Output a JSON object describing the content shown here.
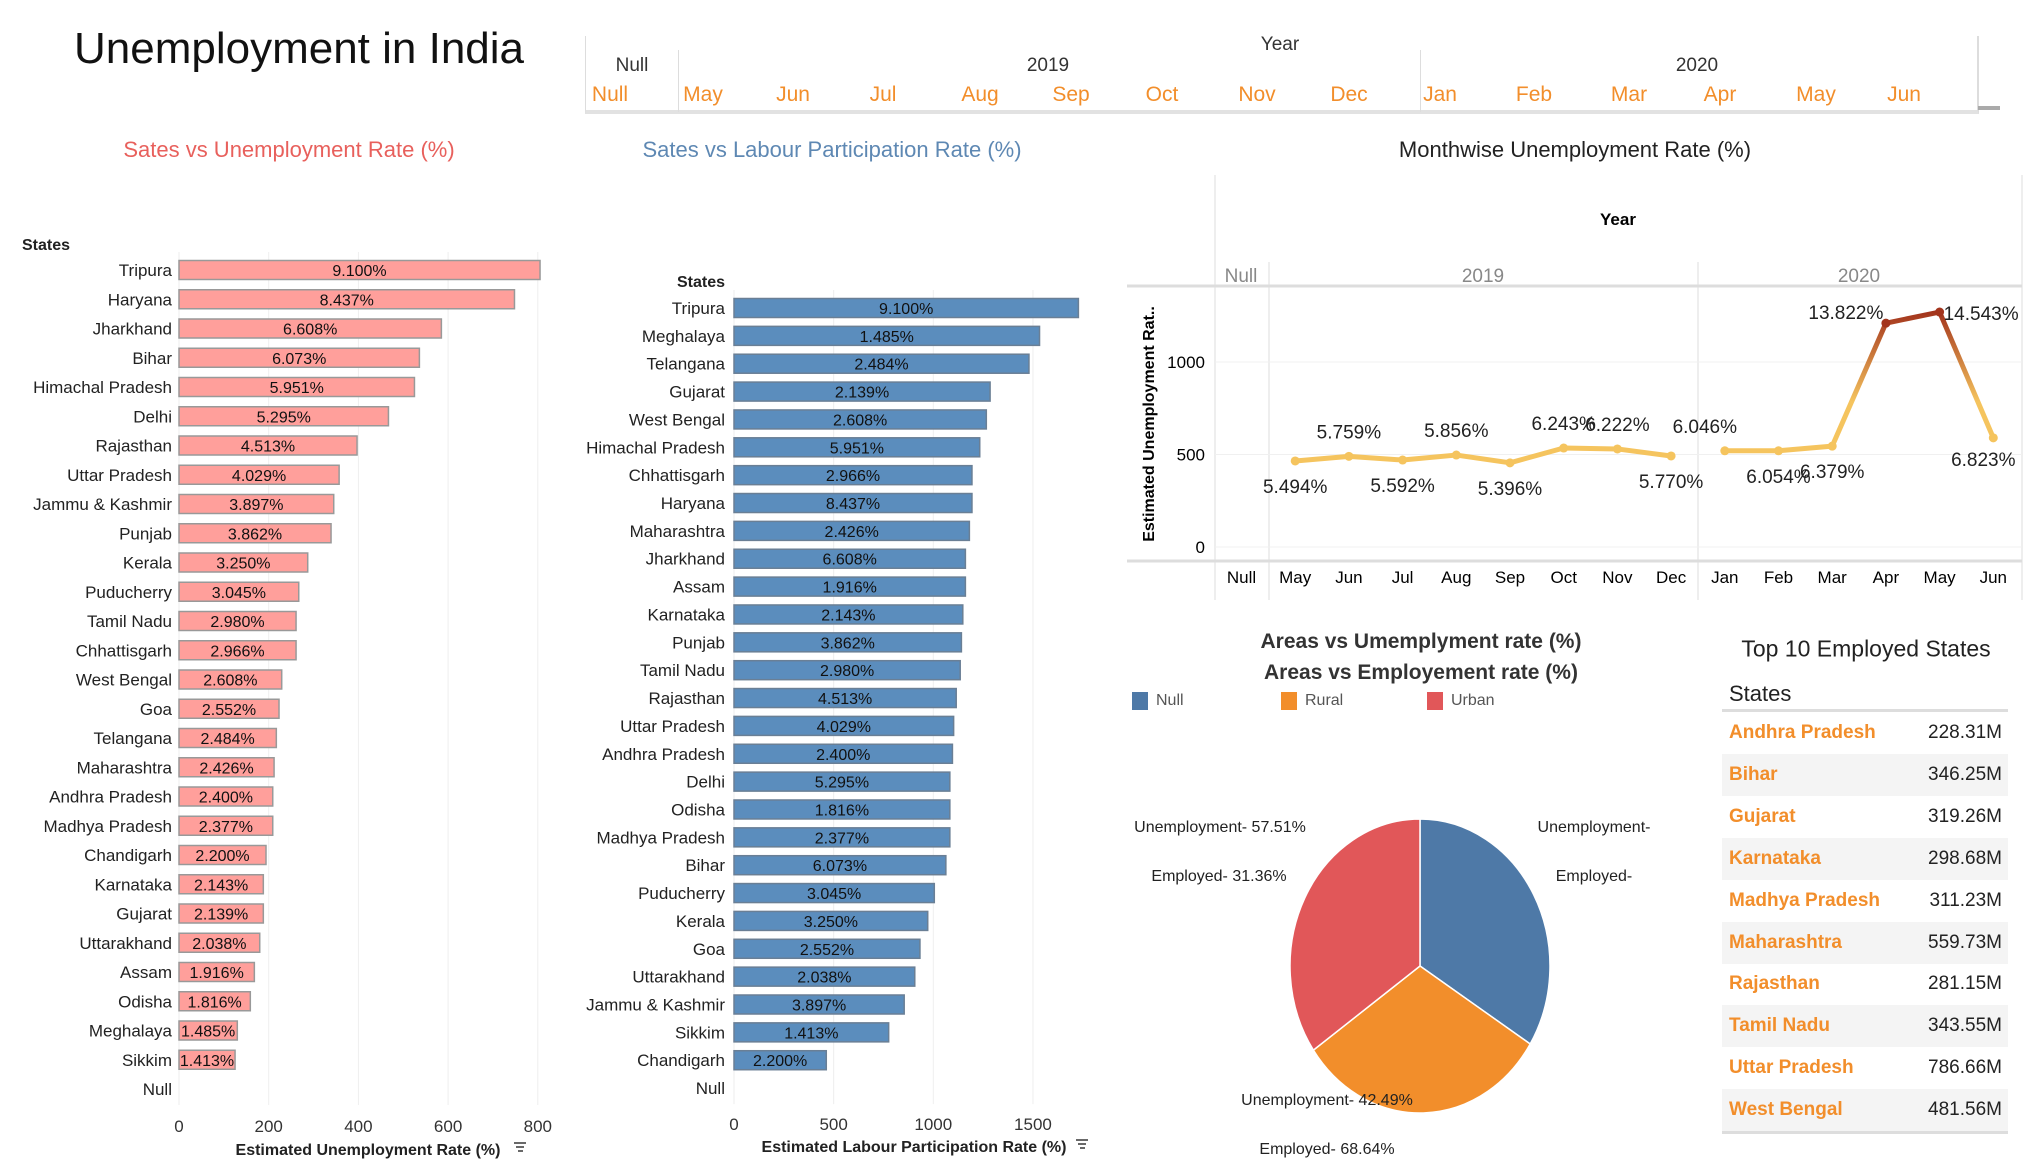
{
  "header": {
    "title": "Unemployment in India"
  },
  "filter": {
    "label": "Year",
    "groups": [
      {
        "label": "Null"
      },
      {
        "label": "2019"
      },
      {
        "label": "2020"
      }
    ],
    "months": [
      "Null",
      "May",
      "Jun",
      "Jul",
      "Aug",
      "Sep",
      "Oct",
      "Nov",
      "Dec",
      "Jan",
      "Feb",
      "Mar",
      "Apr",
      "May",
      "Jun"
    ]
  },
  "colors": {
    "unemp_bar": "#ff9f9b",
    "labour_bar": "#5b8dbd",
    "unemp_title": "#e8605c",
    "labour_title": "#5e88b3",
    "accent": "#f28e2b",
    "null": "#4e79a7",
    "rural": "#f28e2b",
    "urban": "#e15759",
    "line_low": "#f5c45e",
    "line_high": "#a3341c"
  },
  "chart_data": [
    {
      "type": "bar",
      "title": "Sates vs Unemployment Rate (%)",
      "ylabel": "States",
      "xlabel": "Estimated Unemployment Rate (%)",
      "xlim": [
        0,
        800
      ],
      "xticks": [
        "0",
        "200",
        "400",
        "600",
        "800"
      ],
      "grid": true,
      "categories": [
        "Tripura",
        "Haryana",
        "Jharkhand",
        "Bihar",
        "Himachal Pradesh",
        "Delhi",
        "Rajasthan",
        "Uttar Pradesh",
        "Jammu & Kashmir",
        "Punjab",
        "Kerala",
        "Puducherry",
        "Tamil Nadu",
        "Chhattisgarh",
        "West Bengal",
        "Goa",
        "Telangana",
        "Maharashtra",
        "Andhra Pradesh",
        "Madhya Pradesh",
        "Chandigarh",
        "Karnataka",
        "Gujarat",
        "Uttarakhand",
        "Assam",
        "Odisha",
        "Meghalaya",
        "Sikkim",
        "Null"
      ],
      "values": [
        805,
        748,
        585,
        536,
        525,
        467,
        397,
        357,
        345,
        339,
        287,
        267,
        261,
        261,
        229,
        223,
        217,
        212,
        209,
        209,
        194,
        188,
        188,
        180,
        168,
        159,
        130,
        125,
        0
      ],
      "labels": [
        "9.100%",
        "8.437%",
        "6.608%",
        "6.073%",
        "5.951%",
        "5.295%",
        "4.513%",
        "4.029%",
        "3.897%",
        "3.862%",
        "3.250%",
        "3.045%",
        "2.980%",
        "2.966%",
        "2.608%",
        "2.552%",
        "2.484%",
        "2.426%",
        "2.400%",
        "2.377%",
        "2.200%",
        "2.143%",
        "2.139%",
        "2.038%",
        "1.916%",
        "1.816%",
        "1.485%",
        "1.413%",
        ""
      ]
    },
    {
      "type": "bar",
      "title": "Sates vs Labour Participation Rate (%)",
      "ylabel": "States",
      "xlabel": "Estimated Labour Participation Rate (%)",
      "xlim": [
        0,
        1750
      ],
      "xticks": [
        "0",
        "500",
        "1000",
        "1500"
      ],
      "grid": true,
      "categories": [
        "Tripura",
        "Meghalaya",
        "Telangana",
        "Gujarat",
        "West Bengal",
        "Himachal Pradesh",
        "Chhattisgarh",
        "Haryana",
        "Maharashtra",
        "Jharkhand",
        "Assam",
        "Karnataka",
        "Punjab",
        "Tamil Nadu",
        "Rajasthan",
        "Uttar Pradesh",
        "Andhra Pradesh",
        "Delhi",
        "Odisha",
        "Madhya Pradesh",
        "Bihar",
        "Puducherry",
        "Kerala",
        "Goa",
        "Uttarakhand",
        "Jammu & Kashmir",
        "Sikkim",
        "Chandigarh",
        "Null"
      ],
      "values": [
        1728,
        1533,
        1480,
        1285,
        1266,
        1233,
        1194,
        1194,
        1181,
        1161,
        1161,
        1148,
        1141,
        1135,
        1115,
        1102,
        1096,
        1083,
        1083,
        1083,
        1063,
        1005,
        972,
        933,
        907,
        854,
        776,
        463,
        0
      ],
      "labels": [
        "9.100%",
        "1.485%",
        "2.484%",
        "2.139%",
        "2.608%",
        "5.951%",
        "2.966%",
        "8.437%",
        "2.426%",
        "6.608%",
        "1.916%",
        "2.143%",
        "3.862%",
        "2.980%",
        "4.513%",
        "4.029%",
        "2.400%",
        "5.295%",
        "1.816%",
        "2.377%",
        "6.073%",
        "3.045%",
        "3.250%",
        "2.552%",
        "2.038%",
        "3.897%",
        "1.413%",
        "2.200%",
        ""
      ]
    },
    {
      "type": "line",
      "title": "Monthwise Unemployment Rate (%)",
      "header": "Year",
      "ylabel": "Estimated Unemployment Rat..",
      "ylim": [
        0,
        1350
      ],
      "yticks": [
        "0",
        "500",
        "1000"
      ],
      "groups": [
        {
          "label": "Null",
          "months": 1
        },
        {
          "label": "2019",
          "months": 8
        },
        {
          "label": "2020",
          "months": 6
        }
      ],
      "x": [
        "Null",
        "May",
        "Jun",
        "Jul",
        "Aug",
        "Sep",
        "Oct",
        "Nov",
        "Dec",
        "Jan",
        "Feb",
        "Mar",
        "Apr",
        "May",
        "Jun"
      ],
      "values": [
        null,
        465,
        490,
        470,
        497,
        455,
        535,
        530,
        492,
        520,
        520,
        545,
        1210,
        1270,
        590
      ],
      "labels": [
        "",
        "5.494%",
        "5.759%",
        "5.592%",
        "5.856%",
        "5.396%",
        "6.243%",
        "6.222%",
        "5.770%",
        "6.046%",
        "6.054%",
        "6.379%",
        "13.822%",
        "14.543%",
        "6.823%"
      ],
      "label_pos": [
        "",
        "below",
        "above",
        "below",
        "above",
        "below",
        "above",
        "above",
        "below",
        "above",
        "below",
        "below",
        "above",
        "right",
        "below"
      ]
    },
    {
      "type": "pie",
      "title": "Areas vs Umemplyment rate (%)",
      "subtitle": "Areas vs Employement rate (%)",
      "legend": [
        "Null",
        "Rural",
        "Urban"
      ],
      "legend_position": "top-left",
      "values": [
        0.339,
        0.314,
        0.347
      ],
      "slice_labels": [
        {
          "unemp": "Unemployment-",
          "emp": "Employed-"
        },
        {
          "unemp": "Unemployment- 42.49%",
          "emp": "Employed- 68.64%"
        },
        {
          "unemp": "Unemployment- 57.51%",
          "emp": "Employed- 31.36%"
        }
      ]
    }
  ],
  "table": {
    "title": "Top 10 Employed States",
    "column": "States",
    "rows": [
      {
        "state": "Andhra Pradesh",
        "value": "228.31M"
      },
      {
        "state": "Bihar",
        "value": "346.25M"
      },
      {
        "state": "Gujarat",
        "value": "319.26M"
      },
      {
        "state": "Karnataka",
        "value": "298.68M"
      },
      {
        "state": "Madhya Pradesh",
        "value": "311.23M"
      },
      {
        "state": "Maharashtra",
        "value": "559.73M"
      },
      {
        "state": "Rajasthan",
        "value": "281.15M"
      },
      {
        "state": "Tamil Nadu",
        "value": "343.55M"
      },
      {
        "state": "Uttar Pradesh",
        "value": "786.66M"
      },
      {
        "state": "West Bengal",
        "value": "481.56M"
      }
    ]
  }
}
